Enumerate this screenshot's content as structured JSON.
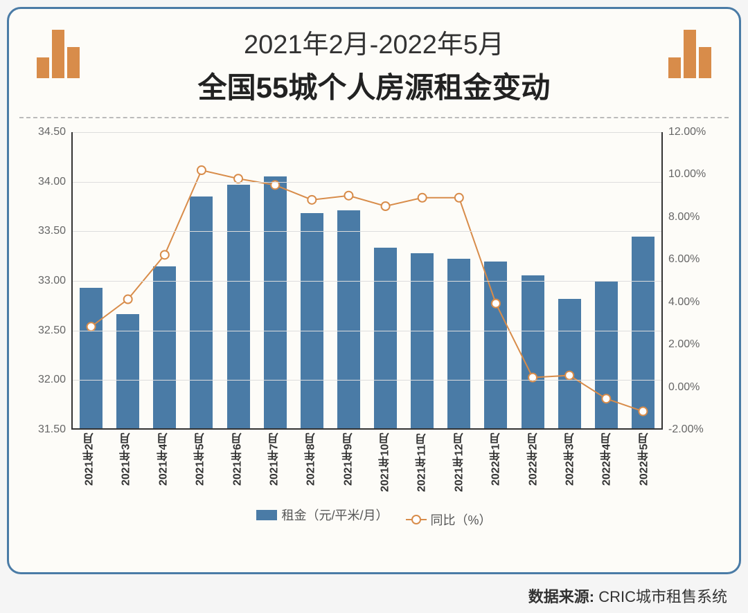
{
  "title": {
    "line1": "2021年2月-2022年5月",
    "line2": "全国55城个人房源租金变动",
    "line1_fontsize": 38,
    "line2_fontsize": 42,
    "color": "#333"
  },
  "decoration": {
    "bar_color": "#d88c4a",
    "left_heights": [
      30,
      70,
      45
    ],
    "right_heights": [
      30,
      70,
      45
    ]
  },
  "chart": {
    "type": "bar+line",
    "background_color": "#fdfcf8",
    "border_color": "#4a7ba6",
    "grid_color": "#dddddd",
    "axis_color": "#333333",
    "categories": [
      "2021年2月",
      "2021年3月",
      "2021年4月",
      "2021年5月",
      "2021年6月",
      "2021年7月",
      "2021年8月",
      "2021年9月",
      "2021年10月",
      "2021年11月",
      "2021年12月",
      "2022年1月",
      "2022年2月",
      "2022年3月",
      "2022年4月",
      "2022年5月"
    ],
    "bar_series": {
      "name": "租金（元/平米/月）",
      "color": "#4a7ba6",
      "values": [
        32.92,
        32.66,
        33.14,
        33.85,
        33.97,
        34.05,
        33.68,
        33.71,
        33.33,
        33.27,
        33.22,
        33.19,
        33.05,
        32.81,
        32.99,
        33.44
      ],
      "bar_width_ratio": 0.62
    },
    "line_series": {
      "name": "同比（%）",
      "color": "#d88c4a",
      "marker_fill": "#ffffff",
      "marker_size": 6,
      "line_width": 2,
      "values": [
        2.8,
        4.1,
        6.2,
        10.2,
        9.8,
        9.5,
        8.8,
        9.0,
        8.5,
        8.9,
        8.9,
        3.9,
        0.4,
        0.5,
        -0.6,
        -1.2
      ]
    },
    "y_left": {
      "label": "",
      "min": 31.5,
      "max": 34.5,
      "step": 0.5,
      "ticks": [
        "31.50",
        "32.00",
        "32.50",
        "33.00",
        "33.50",
        "34.00",
        "34.50"
      ],
      "fontsize": 16
    },
    "y_right": {
      "label": "",
      "min": -2.0,
      "max": 12.0,
      "step": 2.0,
      "ticks": [
        "-2.00%",
        "0.00%",
        "2.00%",
        "4.00%",
        "6.00%",
        "8.00%",
        "10.00%",
        "12.00%"
      ],
      "fontsize": 16
    },
    "x_label_fontsize": 16,
    "x_label_rotation": "vertical"
  },
  "legend": {
    "items": [
      {
        "type": "bar",
        "label": "租金（元/平米/月）",
        "color": "#4a7ba6"
      },
      {
        "type": "line",
        "label": "同比（%）",
        "color": "#d88c4a"
      }
    ],
    "prefix_bar": "",
    "prefix_line": "--•--"
  },
  "source": {
    "label": "数据来源:",
    "value": "CRIC城市租售系统"
  }
}
